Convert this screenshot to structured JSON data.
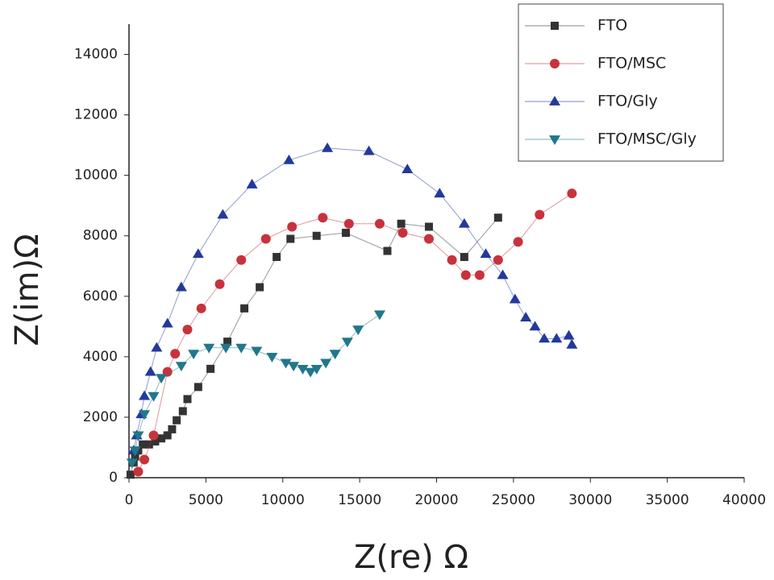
{
  "chart_data": {
    "type": "scatter-line",
    "x_label": "Z(re) Ω",
    "y_label": "Z(im)Ω",
    "xlim": [
      0,
      40000
    ],
    "ylim": [
      0,
      15000
    ],
    "xticks": [
      0,
      5000,
      10000,
      15000,
      20000,
      25000,
      30000,
      35000,
      40000
    ],
    "yticks": [
      0,
      2000,
      4000,
      6000,
      8000,
      10000,
      12000,
      14000
    ],
    "legend": "upper right",
    "series": [
      {
        "name": "FTO",
        "color": "#333333",
        "marker": "square",
        "x": [
          100,
          300,
          400,
          600,
          900,
          1300,
          1700,
          2100,
          2500,
          2800,
          3100,
          3500,
          3800,
          4500,
          5300,
          6400,
          7500,
          8500,
          9600,
          10500,
          12200,
          14100,
          16800,
          17700,
          19500,
          21800,
          24000
        ],
        "values": [
          100,
          500,
          700,
          900,
          1100,
          1100,
          1200,
          1300,
          1400,
          1600,
          1900,
          2200,
          2600,
          3000,
          3600,
          4500,
          5600,
          6300,
          7300,
          7900,
          8000,
          8100,
          7500,
          8400,
          8300,
          7300,
          8600
        ]
      },
      {
        "name": "FTO/MSC",
        "color": "#c8323c",
        "marker": "circle",
        "x": [
          600,
          1000,
          1600,
          2500,
          3000,
          3800,
          4700,
          5900,
          7300,
          8900,
          10600,
          12600,
          14300,
          16300,
          17800,
          19500,
          21000,
          21900,
          22800,
          24000,
          25300,
          26700,
          28800
        ],
        "values": [
          200,
          600,
          1400,
          3500,
          4100,
          4900,
          5600,
          6400,
          7200,
          7900,
          8300,
          8600,
          8400,
          8400,
          8100,
          7900,
          7200,
          6700,
          6700,
          7200,
          7800,
          8700,
          9400
        ]
      },
      {
        "name": "FTO/Gly",
        "color": "#23399b",
        "marker": "triangle-up",
        "x": [
          300,
          500,
          800,
          1000,
          1400,
          1800,
          2500,
          3400,
          4500,
          6100,
          8000,
          10400,
          12900,
          15600,
          18100,
          20200,
          21800,
          23200,
          24300,
          25100,
          25800,
          26400,
          27000,
          27800,
          28600,
          28800
        ],
        "values": [
          900,
          1400,
          2100,
          2700,
          3500,
          4300,
          5100,
          6300,
          7400,
          8700,
          9700,
          10500,
          10900,
          10800,
          10200,
          9400,
          8400,
          7400,
          6700,
          5900,
          5300,
          5000,
          4600,
          4600,
          4700,
          4400
        ]
      },
      {
        "name": "FTO/MSC/Gly",
        "color": "#21778b",
        "marker": "triangle-down",
        "x": [
          200,
          400,
          600,
          1000,
          1600,
          2100,
          3400,
          4200,
          5200,
          6300,
          7300,
          8300,
          9300,
          10200,
          10700,
          11300,
          11800,
          12200,
          12800,
          13400,
          14200,
          14900,
          16300
        ],
        "values": [
          500,
          900,
          1400,
          2100,
          2700,
          3300,
          3700,
          4100,
          4300,
          4300,
          4300,
          4200,
          4000,
          3800,
          3700,
          3600,
          3500,
          3600,
          3800,
          4100,
          4500,
          4900,
          5400
        ]
      }
    ]
  }
}
